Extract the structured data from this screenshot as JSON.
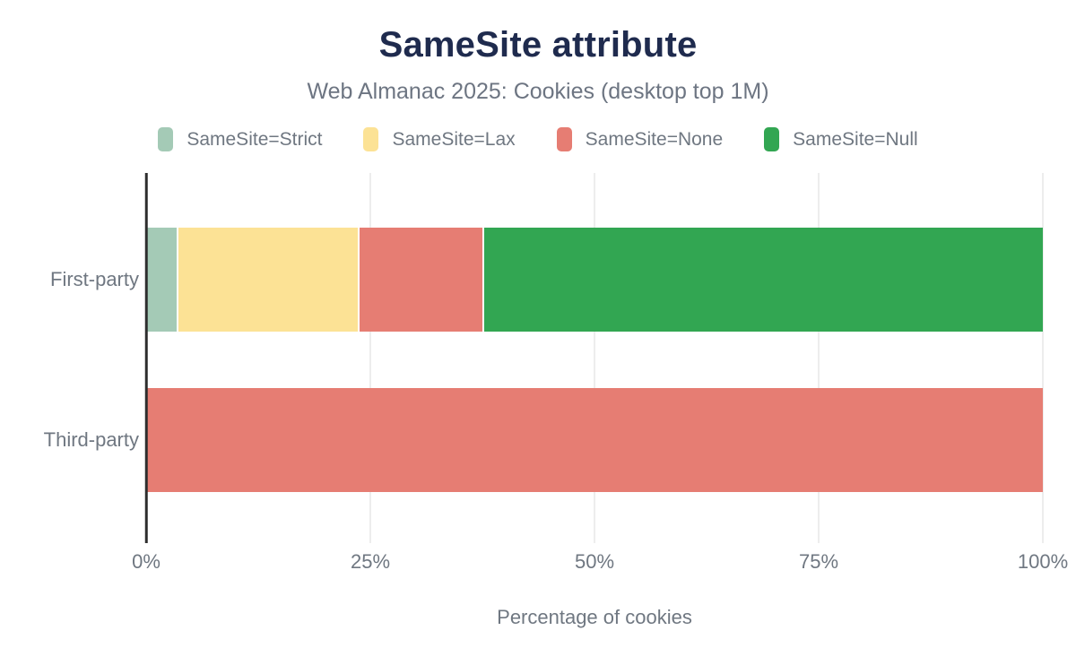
{
  "header": {
    "title": "SameSite attribute",
    "subtitle": "Web Almanac 2025: Cookies (desktop top 1M)"
  },
  "chart_data": {
    "type": "bar",
    "orientation": "horizontal",
    "stacked": true,
    "title": "SameSite attribute",
    "subtitle": "Web Almanac 2025: Cookies (desktop top 1M)",
    "categories": [
      "First-party",
      "Third-party"
    ],
    "series": [
      {
        "name": "SameSite=Strict",
        "color": "#a4cab6",
        "values": [
          3.4,
          0
        ]
      },
      {
        "name": "SameSite=Lax",
        "color": "#fce295",
        "values": [
          20.2,
          0
        ]
      },
      {
        "name": "SameSite=None",
        "color": "#e67d73",
        "values": [
          13.9,
          100
        ]
      },
      {
        "name": "SameSite=Null",
        "color": "#32a652",
        "values": [
          62.5,
          0
        ]
      }
    ],
    "xlabel": "Percentage of cookies",
    "x_ticks": [
      0,
      25,
      50,
      75,
      100
    ],
    "x_tick_labels": [
      "0%",
      "25%",
      "50%",
      "75%",
      "100%"
    ],
    "xlim": [
      0,
      100
    ],
    "grid": true,
    "legend_position": "top"
  },
  "colors": {
    "title": "#1f2b4e",
    "text": "#6f7781",
    "axis_line": "#2e2e2e",
    "gridline": "#ededed",
    "background": "#ffffff"
  }
}
